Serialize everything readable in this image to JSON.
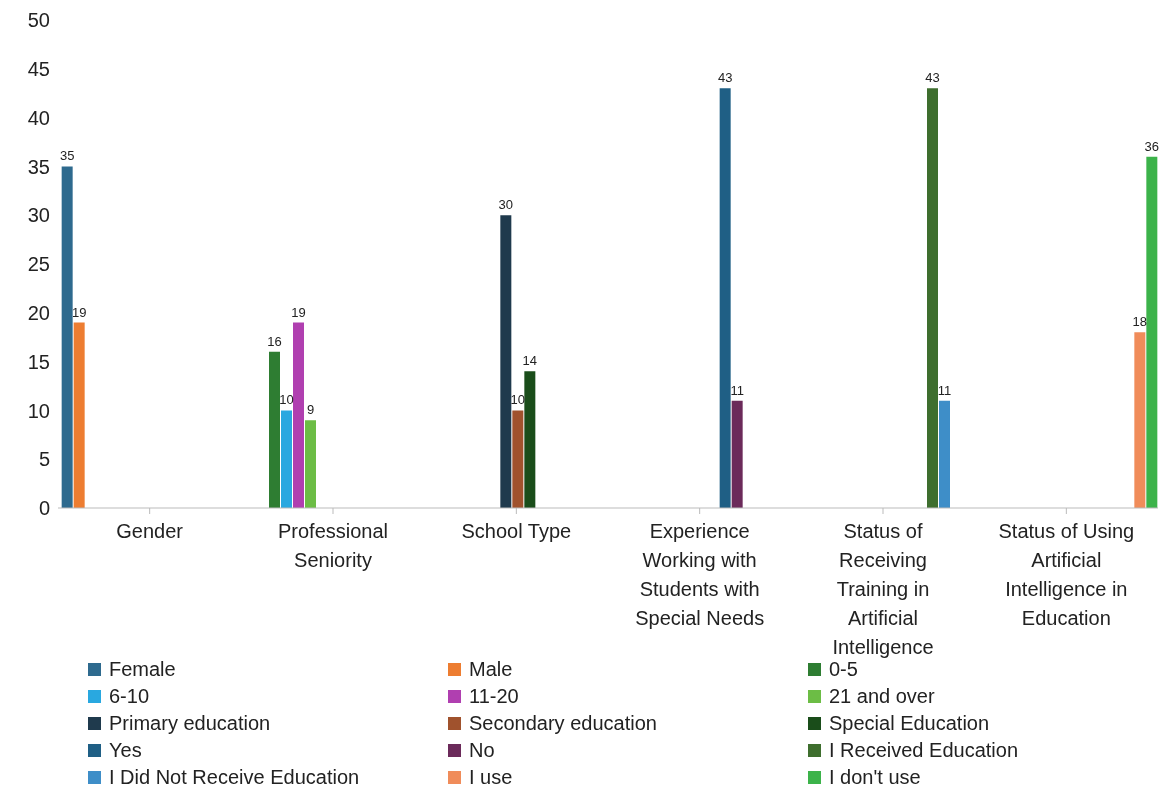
{
  "chart_data": {
    "type": "bar",
    "categories": [
      "Gender",
      "Professional Seniority",
      "School Type",
      "Experience Working with Students with Special Needs",
      "Status of Receiving Training in Artificial Intelligence",
      "Status of Using Artificial Intelligence in Education"
    ],
    "series": [
      {
        "name": "Female",
        "color": "#2e6a8e",
        "values": [
          35,
          null,
          null,
          null,
          null,
          null
        ]
      },
      {
        "name": "Male",
        "color": "#ed7d31",
        "values": [
          19,
          null,
          null,
          null,
          null,
          null
        ]
      },
      {
        "name": "0-5",
        "color": "#2e7d32",
        "values": [
          null,
          16,
          null,
          null,
          null,
          null
        ]
      },
      {
        "name": "6-10",
        "color": "#29a8e0",
        "values": [
          null,
          10,
          null,
          null,
          null,
          null
        ]
      },
      {
        "name": "11-20",
        "color": "#b03fb0",
        "values": [
          null,
          19,
          null,
          null,
          null,
          null
        ]
      },
      {
        "name": "21 and over",
        "color": "#6cbd45",
        "values": [
          null,
          9,
          null,
          null,
          null,
          null
        ]
      },
      {
        "name": "Primary education",
        "color": "#1f3a4d",
        "values": [
          null,
          null,
          30,
          null,
          null,
          null
        ]
      },
      {
        "name": "Secondary education",
        "color": "#a0522d",
        "values": [
          null,
          null,
          10,
          null,
          null,
          null
        ]
      },
      {
        "name": "Special Education",
        "color": "#1a4d1a",
        "values": [
          null,
          null,
          14,
          null,
          null,
          null
        ]
      },
      {
        "name": "Yes",
        "color": "#1f5f85",
        "values": [
          null,
          null,
          null,
          43,
          null,
          null
        ]
      },
      {
        "name": "No",
        "color": "#6b2a5a",
        "values": [
          null,
          null,
          null,
          11,
          null,
          null
        ]
      },
      {
        "name": "I Received Education",
        "color": "#3e6e2e",
        "values": [
          null,
          null,
          null,
          null,
          43,
          null
        ]
      },
      {
        "name": "I Did Not Receive Education",
        "color": "#3e8ec8",
        "values": [
          null,
          null,
          null,
          null,
          11,
          null
        ]
      },
      {
        "name": "I use",
        "color": "#f08c5a",
        "values": [
          null,
          null,
          null,
          null,
          null,
          18
        ]
      },
      {
        "name": "I don't use",
        "color": "#3cb34a",
        "values": [
          null,
          null,
          null,
          null,
          null,
          36
        ]
      }
    ],
    "ylim": [
      0,
      50
    ],
    "yticks": [
      0,
      5,
      10,
      15,
      20,
      25,
      30,
      35,
      40,
      45,
      50
    ],
    "data_labels": true,
    "legend": "bottom"
  }
}
